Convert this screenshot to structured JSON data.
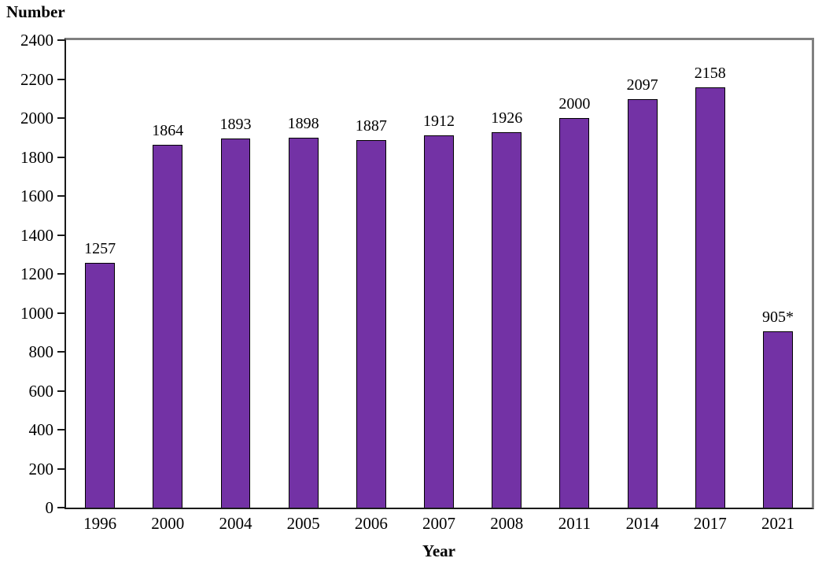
{
  "chart_data": {
    "type": "bar",
    "title": "",
    "ylabel": "Number",
    "xlabel": "Year",
    "categories": [
      "1996",
      "2000",
      "2004",
      "2005",
      "2006",
      "2007",
      "2008",
      "2011",
      "2014",
      "2017",
      "2021"
    ],
    "values": [
      1257,
      1864,
      1893,
      1898,
      1887,
      1912,
      1926,
      2000,
      2097,
      2158,
      905
    ],
    "value_labels": [
      "1257",
      "1864",
      "1893",
      "1898",
      "1887",
      "1912",
      "1926",
      "2000",
      "2097",
      "2158",
      "905*"
    ],
    "ylim": [
      0,
      2400
    ],
    "ytick_step": 200,
    "grid": false,
    "legend": "none",
    "bar_color": "#7332A5",
    "bar_border_color": "#000000",
    "axis_color": "#1a1a1a",
    "plot_border_color": "#808080"
  }
}
